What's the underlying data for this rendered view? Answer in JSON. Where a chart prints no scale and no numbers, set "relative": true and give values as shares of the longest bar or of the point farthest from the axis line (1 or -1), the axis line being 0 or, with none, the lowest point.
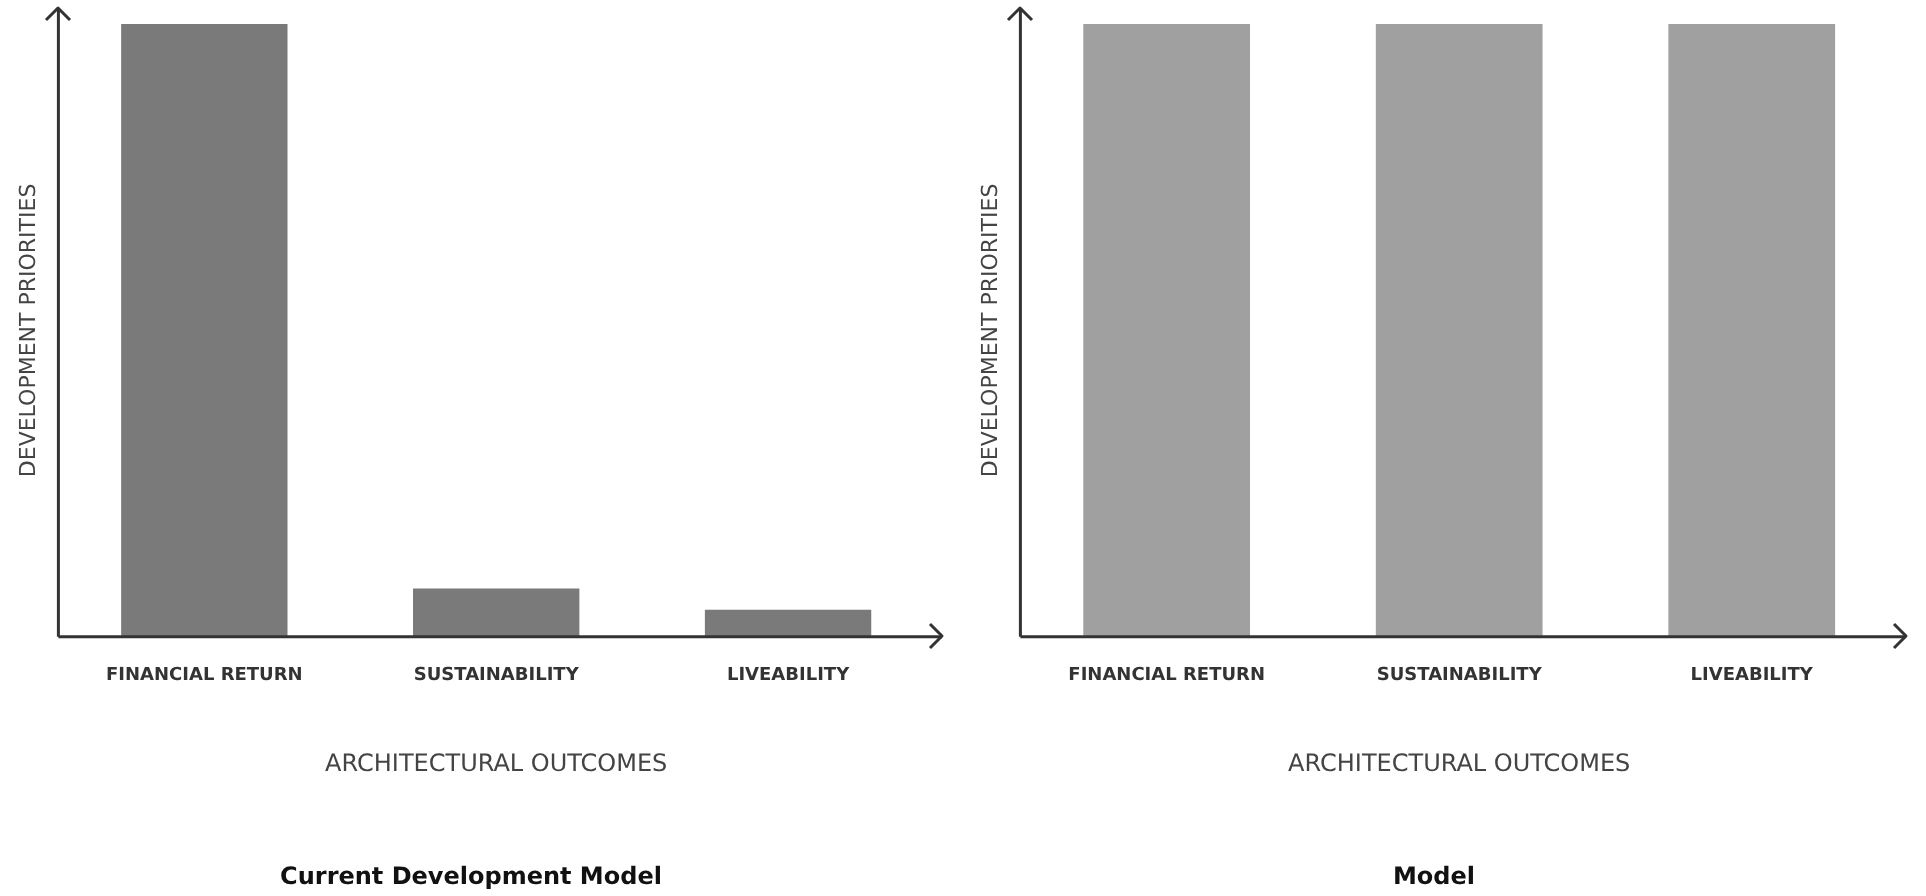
{
  "chart_data": [
    {
      "type": "bar",
      "title": "Current Development Model",
      "xlabel": "ARCHITECTURAL OUTCOMES",
      "ylabel": "DEVELOPMENT PRIORITIES",
      "categories": [
        "FINANCIAL RETURN",
        "SUSTAINABILITY",
        "LIVEABILITY"
      ],
      "values": [
        1,
        0.079,
        0.044
      ],
      "color": "#7a7a7a",
      "relative": true,
      "grid": false,
      "legend": false
    },
    {
      "type": "bar",
      "title": "Model",
      "xlabel": "ARCHITECTURAL OUTCOMES",
      "ylabel": "DEVELOPMENT PRIORITIES",
      "categories": [
        "FINANCIAL RETURN",
        "SUSTAINABILITY",
        "LIVEABILITY"
      ],
      "values": [
        1,
        1,
        1
      ],
      "color": "#a0a0a0",
      "relative": true,
      "grid": false,
      "legend": false
    }
  ]
}
